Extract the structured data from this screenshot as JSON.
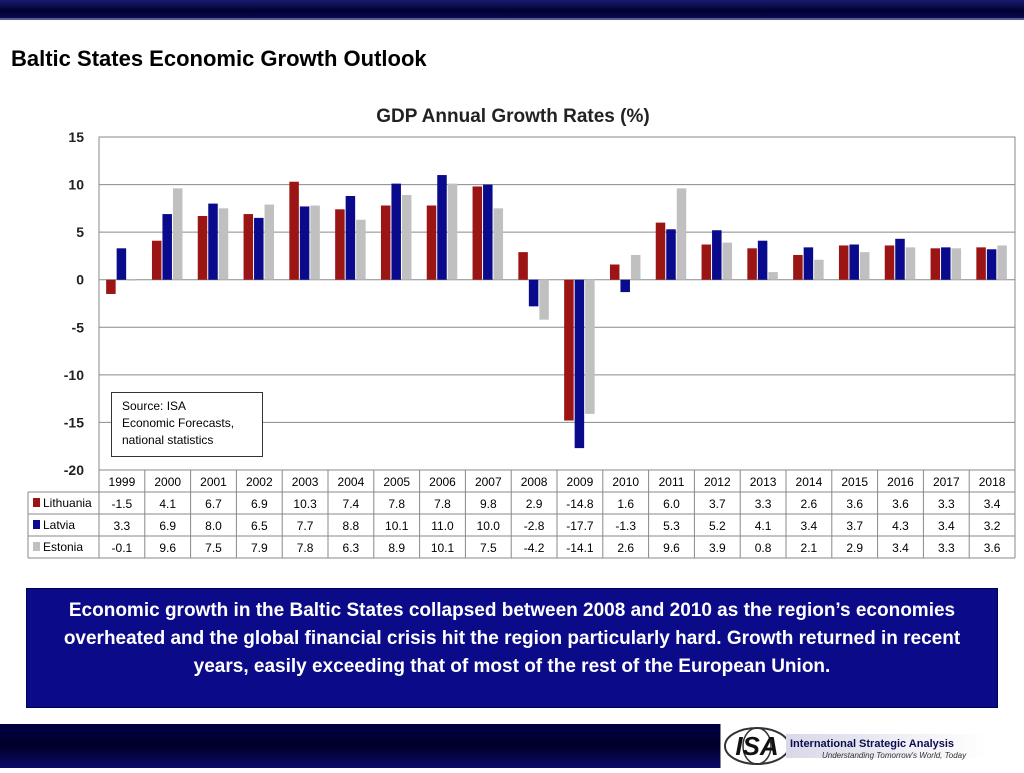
{
  "page": {
    "title": "Baltic States Economic Growth Outlook",
    "summary": "Economic growth in the Baltic States collapsed between 2008 and 2010 as the region’s economies overheated and the global financial crisis hit the region particularly hard. Growth returned in recent years, easily exceeding that of most of the rest of the European Union.",
    "source_note": [
      "Source: ISA",
      "Economic Forecasts,",
      "national statistics"
    ]
  },
  "logo": {
    "mark": "ISA",
    "name": "International Strategic Analysis",
    "tagline": "Understanding Tomorrow's World, Today"
  },
  "colors": {
    "Lithuania": "#9c1515",
    "Latvia": "#0a0a8c",
    "Estonia": "#c0c0c0",
    "banner": "#0b0b8a"
  },
  "chart_data": {
    "type": "bar",
    "title": "GDP Annual Growth Rates (%)",
    "categories": [
      "1999",
      "2000",
      "2001",
      "2002",
      "2003",
      "2004",
      "2005",
      "2006",
      "2007",
      "2008",
      "2009",
      "2010",
      "2011",
      "2012",
      "2013",
      "2014",
      "2015",
      "2016",
      "2017",
      "2018"
    ],
    "series": [
      {
        "name": "Lithuania",
        "values": [
          -1.5,
          4.1,
          6.7,
          6.9,
          10.3,
          7.4,
          7.8,
          7.8,
          9.8,
          2.9,
          -14.8,
          1.6,
          6.0,
          3.7,
          3.3,
          2.6,
          3.6,
          3.6,
          3.3,
          3.4
        ]
      },
      {
        "name": "Latvia",
        "values": [
          3.3,
          6.9,
          8.0,
          6.5,
          7.7,
          8.8,
          10.1,
          11.0,
          10.0,
          -2.8,
          -17.7,
          -1.3,
          5.3,
          5.2,
          4.1,
          3.4,
          3.7,
          4.3,
          3.4,
          3.2
        ]
      },
      {
        "name": "Estonia",
        "values": [
          -0.1,
          9.6,
          7.5,
          7.9,
          7.8,
          6.3,
          8.9,
          10.1,
          7.5,
          -4.2,
          -14.1,
          2.6,
          9.6,
          3.9,
          0.8,
          2.1,
          2.9,
          3.4,
          3.3,
          3.6
        ]
      }
    ],
    "yticks": [
      15,
      10,
      5,
      0,
      -5,
      -10,
      -15,
      -20
    ],
    "ylim": [
      -20,
      15
    ],
    "grid": "horizontal",
    "legend": "data-table"
  }
}
